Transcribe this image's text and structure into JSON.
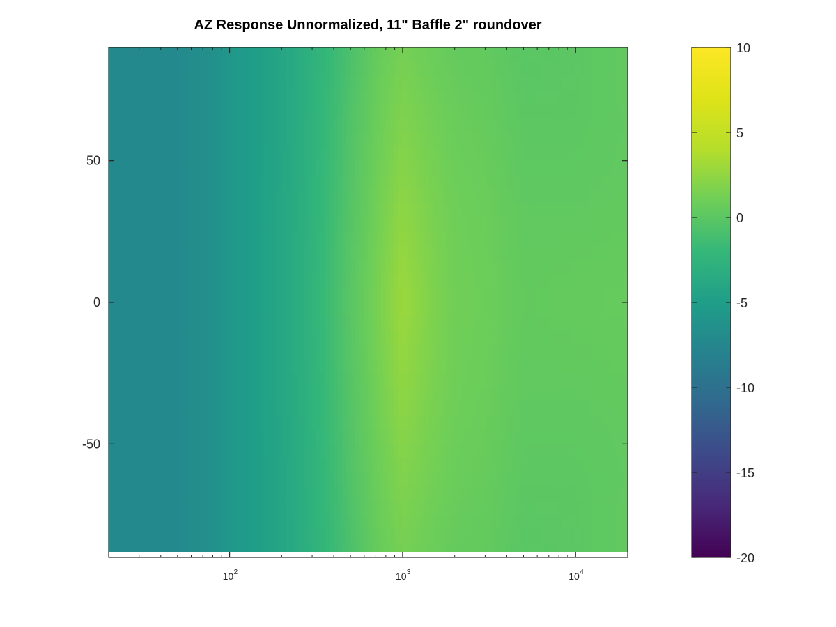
{
  "chart_data": {
    "type": "heatmap",
    "title": "AZ Response Unnormalized, 11\" Baffle 2\" roundover",
    "xlabel": "",
    "ylabel": "",
    "x_scale": "log",
    "xlim": [
      20,
      20000
    ],
    "ylim": [
      -90,
      90
    ],
    "x_ticks": [
      {
        "base": "10",
        "exp": "2",
        "value": 100
      },
      {
        "base": "10",
        "exp": "3",
        "value": 1000
      },
      {
        "base": "10",
        "exp": "4",
        "value": 10000
      }
    ],
    "y_ticks": [
      {
        "label": "50",
        "value": 50
      },
      {
        "label": "0",
        "value": 0
      },
      {
        "label": "-50",
        "value": -50
      }
    ],
    "colorbar": {
      "colormap": "viridis",
      "clim": [
        -20,
        10
      ],
      "ticks": [
        {
          "label": "10",
          "value": 10
        },
        {
          "label": "5",
          "value": 5
        },
        {
          "label": "0",
          "value": 0
        },
        {
          "label": "-5",
          "value": -5
        },
        {
          "label": "-10",
          "value": -10
        },
        {
          "label": "-15",
          "value": -15
        },
        {
          "label": "-20",
          "value": -20
        }
      ]
    },
    "freq_hz": [
      20,
      50,
      80,
      100,
      200,
      300,
      500,
      700,
      1000,
      1500,
      2000,
      3000,
      5000,
      10000,
      20000
    ],
    "angles_deg": [
      -90,
      -60,
      -30,
      0,
      30,
      60,
      90
    ],
    "response_db": [
      [
        -7.3,
        -7.2,
        -6.5,
        -5.8,
        -4.1,
        -2.8,
        -0.8,
        0.5,
        1.3,
        0.8,
        0.5,
        0.4,
        -0.1,
        0.0,
        0.4
      ],
      [
        -7.3,
        -7.2,
        -6.5,
        -5.8,
        -4.1,
        -2.7,
        -0.5,
        0.8,
        1.8,
        1.2,
        0.8,
        0.6,
        0.1,
        0.1,
        0.3
      ],
      [
        -7.3,
        -7.2,
        -6.5,
        -5.8,
        -4.0,
        -2.6,
        -0.3,
        1.1,
        2.4,
        1.5,
        1.0,
        0.8,
        0.3,
        0.3,
        0.4
      ],
      [
        -7.3,
        -7.2,
        -6.5,
        -5.8,
        -4.0,
        -2.5,
        -0.1,
        1.3,
        2.9,
        1.7,
        1.1,
        0.9,
        0.4,
        0.5,
        0.6
      ],
      [
        -7.3,
        -7.2,
        -6.5,
        -5.8,
        -4.0,
        -2.6,
        -0.3,
        1.1,
        2.4,
        1.5,
        1.0,
        0.8,
        0.3,
        0.3,
        0.4
      ],
      [
        -7.3,
        -7.2,
        -6.5,
        -5.8,
        -4.1,
        -2.7,
        -0.5,
        0.8,
        1.8,
        1.2,
        0.8,
        0.6,
        0.1,
        0.1,
        0.3
      ],
      [
        -7.3,
        -7.2,
        -6.5,
        -5.8,
        -4.1,
        -2.8,
        -0.8,
        0.5,
        1.3,
        0.8,
        0.5,
        0.4,
        -0.1,
        0.0,
        0.4
      ]
    ]
  }
}
